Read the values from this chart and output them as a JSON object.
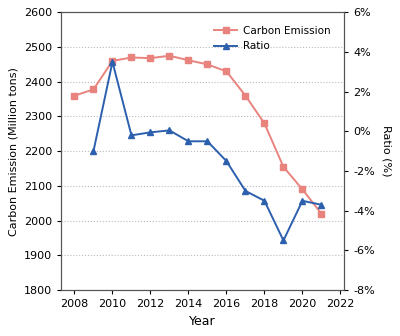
{
  "years": [
    2008,
    2009,
    2010,
    2011,
    2012,
    2013,
    2014,
    2015,
    2016,
    2017,
    2018,
    2019,
    2020,
    2021
  ],
  "carbon_emission": [
    2360,
    2378,
    2460,
    2470,
    2468,
    2475,
    2462,
    2450,
    2430,
    2360,
    2280,
    2155,
    2090,
    2020
  ],
  "ratio_years": [
    2009,
    2010,
    2011,
    2012,
    2013,
    2014,
    2015,
    2016,
    2017,
    2018,
    2019,
    2020,
    2021
  ],
  "ratio_vals": [
    -1.0,
    3.5,
    -0.2,
    -0.05,
    0.05,
    -0.5,
    -0.5,
    -1.5,
    -3.0,
    -3.5,
    -5.5,
    -3.5,
    -3.7
  ],
  "carbon_color": "#E8837E",
  "ratio_color": "#2C5FAD",
  "xlabel": "Year",
  "ylabel_left": "Carbon Emission (Million tons)",
  "ylabel_right": "Ratio (%)",
  "ylim_left": [
    1800,
    2600
  ],
  "ylim_right": [
    -8,
    6
  ],
  "yticks_left": [
    1800,
    1900,
    2000,
    2100,
    2200,
    2300,
    2400,
    2500,
    2600
  ],
  "yticks_right": [
    -8,
    -6,
    -4,
    -2,
    0,
    2,
    4,
    6
  ],
  "xticks": [
    2008,
    2010,
    2012,
    2014,
    2016,
    2018,
    2020,
    2022
  ],
  "legend_carbon": "Carbon Emission",
  "legend_ratio": "Ratio",
  "grid_color": "#bbbbbb",
  "background_color": "#ffffff",
  "figsize": [
    4.0,
    3.36
  ],
  "dpi": 100
}
